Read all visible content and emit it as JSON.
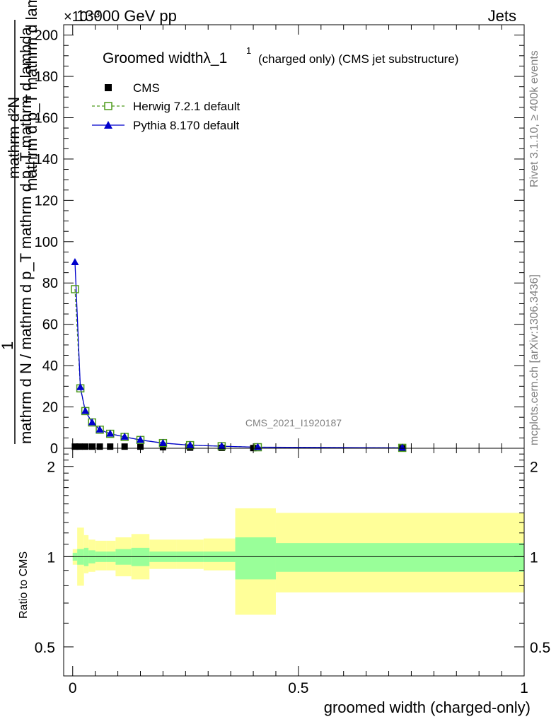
{
  "header": {
    "energy": "13000 GeV pp",
    "category": "Jets",
    "scale": "×10⁻³"
  },
  "side_text": {
    "rivet": "Rivet 3.1.10, ≥ 400k events",
    "mcplots": "mcplots.cern.ch [arXiv:1306.3436]"
  },
  "chart_data": [
    {
      "type": "line",
      "title": "Groomed width λ_1¹",
      "title_parts": {
        "main": "Groomed widthλ_1",
        "sup": "1",
        "sub": "(charged only) (CMS jet substructure)"
      },
      "ylabel": {
        "numerator": "1",
        "denominator": "mathrm d N / mathrm d p_T mathrm d p_T mathrm d lambda",
        "top": "mathrm d²N"
      },
      "ylabel_lines": [
        "mathrm d²N",
        "mathrm d p_T mathrm d lambda",
        "1",
        "mathrm d N / mathrm d p_T mathrm d p_T mathrm d lambda"
      ],
      "ylim": [
        0,
        205
      ],
      "xlim": [
        -0.02,
        1.0
      ],
      "y_ticks": [
        "0",
        "20",
        "40",
        "60",
        "80",
        "100",
        "120",
        "140",
        "160",
        "180",
        "200"
      ],
      "watermark": "CMS_2021_I1920187",
      "legend": [
        {
          "name": "CMS",
          "marker": "square-filled",
          "color": "#000000"
        },
        {
          "name": "Herwig 7.2.1 default",
          "marker": "square-open",
          "color": "#4d9a1a"
        },
        {
          "name": "Pythia 8.170 default",
          "marker": "triangle",
          "color": "#0000cc"
        }
      ],
      "series": [
        {
          "name": "CMS",
          "x": [
            0.005,
            0.015,
            0.028,
            0.043,
            0.06,
            0.083,
            0.115,
            0.15,
            0.2,
            0.26,
            0.33,
            0.4,
            0.73
          ],
          "values": [
            0.8,
            0.8,
            0.8,
            0.8,
            0.8,
            0.8,
            0.8,
            0.8,
            0.5,
            0.3,
            0.2,
            0.1,
            0.05
          ]
        },
        {
          "name": "Herwig 7.2.1 default",
          "x": [
            0.005,
            0.017,
            0.028,
            0.043,
            0.06,
            0.083,
            0.115,
            0.15,
            0.2,
            0.26,
            0.33,
            0.41,
            0.73
          ],
          "values": [
            77,
            29,
            18,
            12.5,
            9,
            7,
            5.5,
            4,
            2.5,
            1.5,
            1,
            0.5,
            0.2
          ]
        },
        {
          "name": "Pythia 8.170 default",
          "x": [
            0.005,
            0.017,
            0.028,
            0.043,
            0.06,
            0.083,
            0.115,
            0.15,
            0.2,
            0.26,
            0.33,
            0.41,
            0.73
          ],
          "values": [
            90,
            29.5,
            18,
            12.5,
            9,
            7,
            5.5,
            4,
            2.5,
            1.5,
            1,
            0.5,
            0.2
          ]
        }
      ]
    },
    {
      "type": "area",
      "ylabel": "Ratio to CMS",
      "xlabel": "groomed width (charged-only)",
      "xlim": [
        -0.02,
        1.0
      ],
      "ylim": [
        0.4,
        2.3
      ],
      "log_y": true,
      "x_ticks": [
        "0",
        "0.5",
        "1"
      ],
      "y_ticks": [
        "0.5",
        "1",
        "2"
      ],
      "band_colors": {
        "inner": "#99ff99",
        "outer": "#ffff99"
      },
      "bands": {
        "edges": [
          0.0,
          0.01,
          0.025,
          0.035,
          0.05,
          0.075,
          0.095,
          0.13,
          0.17,
          0.23,
          0.29,
          0.36,
          0.45,
          1.0
        ],
        "inner_low": [
          0.97,
          0.94,
          0.93,
          0.95,
          0.96,
          0.96,
          0.94,
          0.93,
          0.96,
          0.96,
          0.96,
          0.84,
          0.89
        ],
        "inner_high": [
          1.03,
          1.06,
          1.07,
          1.05,
          1.04,
          1.04,
          1.06,
          1.07,
          1.04,
          1.04,
          1.04,
          1.16,
          1.11
        ],
        "outer_low": [
          0.94,
          0.8,
          0.88,
          0.89,
          0.9,
          0.9,
          0.86,
          0.84,
          0.91,
          0.91,
          0.9,
          0.64,
          0.76
        ],
        "outer_high": [
          1.06,
          1.25,
          1.18,
          1.14,
          1.13,
          1.13,
          1.16,
          1.19,
          1.14,
          1.14,
          1.15,
          1.45,
          1.4
        ]
      }
    }
  ]
}
